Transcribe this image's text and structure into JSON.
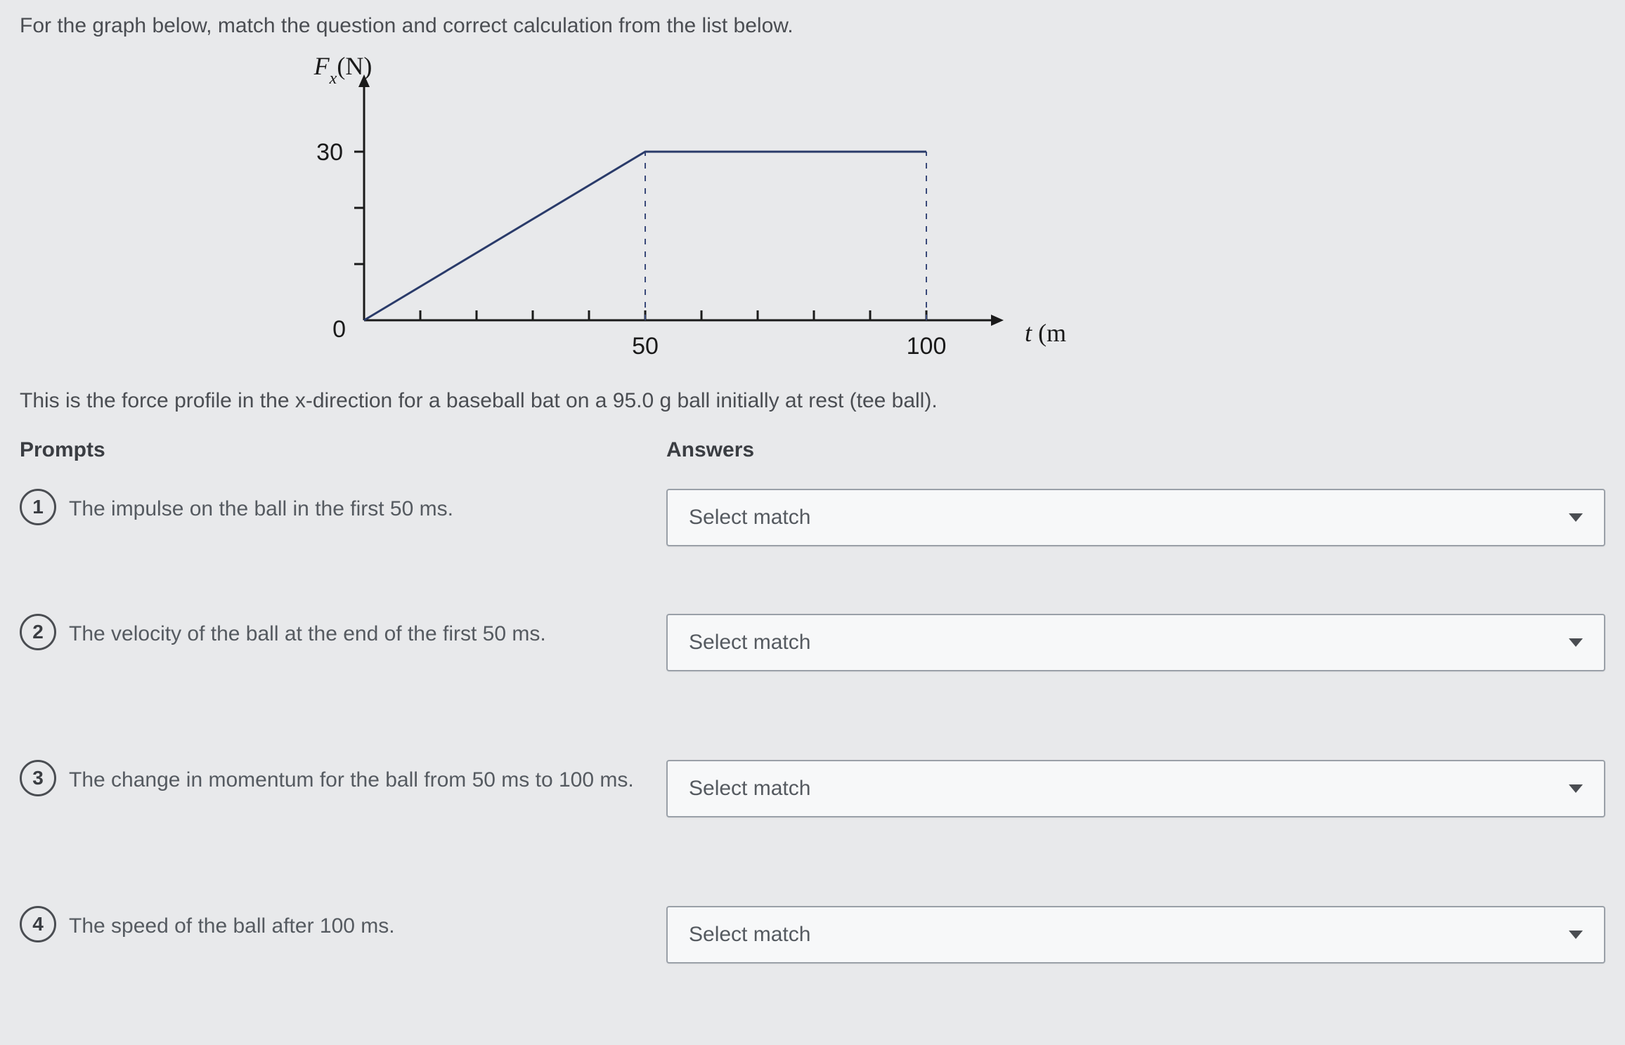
{
  "instruction": "For the graph below, match the question and correct calculation from the list below.",
  "caption": "This is the force profile in the x-direction for a baseball bat on a 95.0 g ball initially at rest (tee ball).",
  "chart": {
    "type": "line",
    "y_label_prefix": "F",
    "y_label_sub": "x",
    "y_label_unit": "(N)",
    "x_label_var": "t",
    "x_label_unit": "(ms)",
    "y_ticks": [
      30
    ],
    "x_ticks": [
      50,
      100
    ],
    "origin_label": "0",
    "xlim": [
      0,
      110
    ],
    "ylim": [
      0,
      40
    ],
    "x_minor_tick_step": 10,
    "y_minor_tick_values": [
      10,
      20,
      30
    ],
    "line_points": [
      [
        0,
        0
      ],
      [
        50,
        30
      ],
      [
        100,
        30
      ]
    ],
    "dashed_verticals_x": [
      50,
      100
    ],
    "dashed_vertical_ymax": 30,
    "line_color": "#2a3b6a",
    "axis_color": "#1a1a1a",
    "dashed_color": "#3a4a7a",
    "background_color": "#e8e9eb",
    "line_width": 3,
    "axis_width": 3
  },
  "headers": {
    "prompts": "Prompts",
    "answers": "Answers"
  },
  "prompts": [
    {
      "num": "1",
      "text": "The impulse on the ball in the first 50 ms."
    },
    {
      "num": "2",
      "text": "The velocity of the ball at the end of the first 50 ms."
    },
    {
      "num": "3",
      "text": "The change in momentum for the ball from 50 ms to 100 ms."
    },
    {
      "num": "4",
      "text": "The speed of the ball after 100 ms."
    }
  ],
  "select_placeholder": "Select match"
}
